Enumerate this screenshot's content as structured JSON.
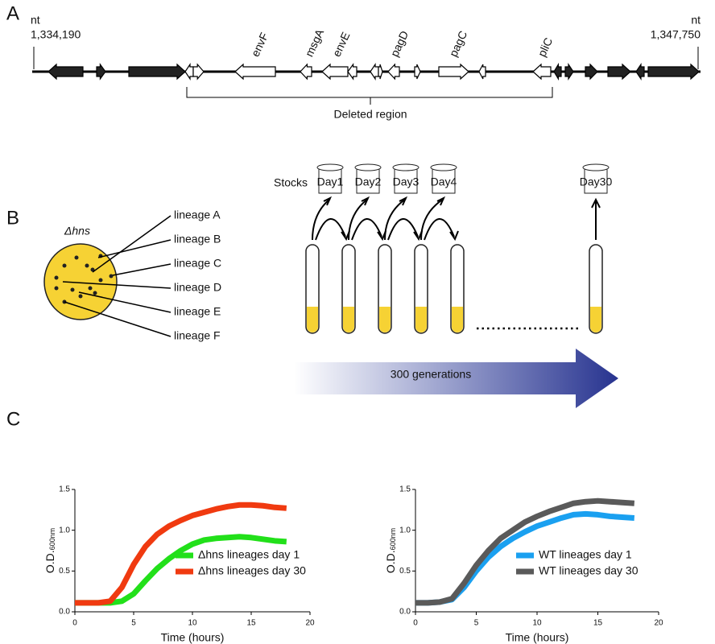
{
  "panels": {
    "a": {
      "letter": "A",
      "left_nt": "nt",
      "left_pos": "1,334,190",
      "right_nt": "nt",
      "right_pos": "1,347,750",
      "genes": [
        "envF",
        "msgA",
        "envE",
        "pagD",
        "pagC",
        "pliC"
      ],
      "deleted": "Deleted region"
    },
    "b": {
      "letter": "B",
      "strain": "Δhns",
      "lineages": [
        "lineage A",
        "lineage B",
        "lineage C",
        "lineage D",
        "lineage E",
        "lineage F"
      ],
      "stocks": "Stocks",
      "days": [
        "Day1",
        "Day2",
        "Day3",
        "Day4",
        "Day30"
      ],
      "generations": "300 generations"
    },
    "c": {
      "letter": "C"
    }
  },
  "chart_data": [
    {
      "type": "line",
      "xlabel": "Time (hours)",
      "ylabel_main": "O.D.",
      "ylabel_sub": "600nm",
      "xlim": [
        0,
        20
      ],
      "ylim": [
        0,
        1.5
      ],
      "xticks": [
        0,
        5,
        10,
        15,
        20
      ],
      "yticks": [
        {
          "value": 0,
          "label": "0.0"
        },
        {
          "value": 0.5,
          "label": "0.5"
        },
        {
          "value": 1,
          "label": "1.0"
        },
        {
          "value": 1.5,
          "label": "1.5"
        }
      ],
      "x": [
        0,
        1,
        2,
        3,
        4,
        5,
        6,
        7,
        8,
        9,
        10,
        11,
        12,
        13,
        14,
        15,
        16,
        17,
        18
      ],
      "series": [
        {
          "name": "Δhns lineages day 1",
          "color": "#22e01a",
          "values": [
            0.11,
            0.11,
            0.11,
            0.11,
            0.13,
            0.22,
            0.38,
            0.53,
            0.65,
            0.75,
            0.83,
            0.88,
            0.9,
            0.91,
            0.92,
            0.91,
            0.89,
            0.87,
            0.86
          ]
        },
        {
          "name": "Δhns lineages day 30",
          "color": "#f03a10",
          "values": [
            0.11,
            0.11,
            0.11,
            0.13,
            0.3,
            0.58,
            0.8,
            0.95,
            1.05,
            1.12,
            1.18,
            1.22,
            1.26,
            1.29,
            1.31,
            1.31,
            1.3,
            1.28,
            1.27
          ]
        }
      ]
    },
    {
      "type": "line",
      "xlabel": "Time (hours)",
      "ylabel_main": "O.D.",
      "ylabel_sub": "600nm",
      "xlim": [
        0,
        20
      ],
      "ylim": [
        0,
        1.5
      ],
      "xticks": [
        0,
        5,
        10,
        15,
        20
      ],
      "yticks": [
        {
          "value": 0,
          "label": "0.0"
        },
        {
          "value": 0.5,
          "label": "0.5"
        },
        {
          "value": 1,
          "label": "1.0"
        },
        {
          "value": 1.5,
          "label": "1.5"
        }
      ],
      "x": [
        0,
        1,
        2,
        3,
        4,
        5,
        6,
        7,
        8,
        9,
        10,
        11,
        12,
        13,
        14,
        15,
        16,
        17,
        18
      ],
      "series": [
        {
          "name": "WT lineages day 1",
          "color": "#1aa0f0",
          "values": [
            0.11,
            0.11,
            0.12,
            0.15,
            0.3,
            0.5,
            0.67,
            0.8,
            0.9,
            0.98,
            1.05,
            1.1,
            1.15,
            1.19,
            1.2,
            1.19,
            1.17,
            1.16,
            1.15
          ]
        },
        {
          "name": "WT lineages day 30",
          "color": "#5a5a5a",
          "values": [
            0.11,
            0.11,
            0.12,
            0.16,
            0.35,
            0.57,
            0.75,
            0.9,
            1.0,
            1.1,
            1.17,
            1.23,
            1.28,
            1.33,
            1.35,
            1.36,
            1.35,
            1.34,
            1.33
          ]
        }
      ]
    }
  ]
}
